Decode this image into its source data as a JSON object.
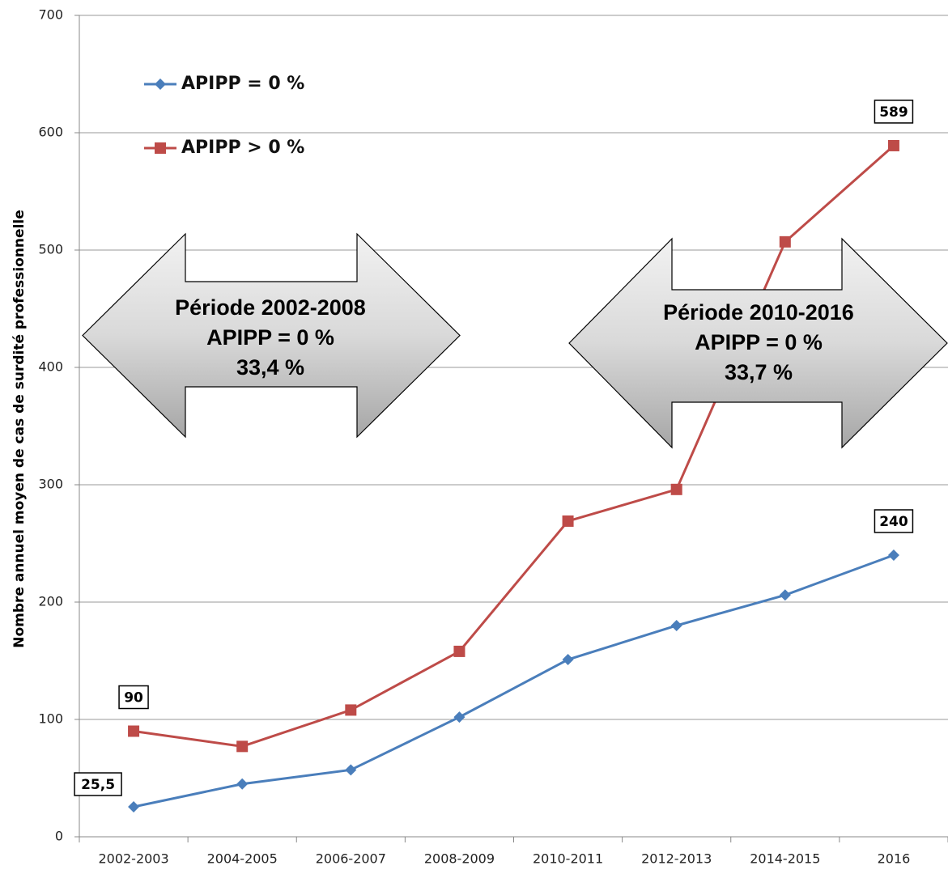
{
  "chart_data": {
    "type": "line",
    "y_label": "Nombre annuel moyen de cas de surdité professionnelle",
    "categories": [
      "2002-2003",
      "2004-2005",
      "2006-2007",
      "2008-2009",
      "2010-2011",
      "2012-2013",
      "2014-2015",
      "2016"
    ],
    "series": [
      {
        "name": "APIPP = 0 %",
        "color": "#4a7ebb",
        "marker": "diamond",
        "values": [
          25.5,
          45,
          57,
          102,
          151,
          180,
          206,
          240
        ],
        "value_labels": [
          "25,5",
          null,
          null,
          null,
          null,
          null,
          null,
          "240"
        ]
      },
      {
        "name": "APIPP > 0 %",
        "color": "#be4b48",
        "marker": "square",
        "values": [
          90,
          77,
          108,
          158,
          269,
          296,
          507,
          589
        ],
        "value_labels": [
          "90",
          null,
          null,
          null,
          null,
          null,
          null,
          "589"
        ]
      }
    ],
    "ylim": [
      0,
      700
    ],
    "yticks": [
      0,
      100,
      200,
      300,
      400,
      500,
      600,
      700
    ],
    "grid": true,
    "legend": "upper left",
    "annotations": [
      {
        "lines": [
          "Période 2002-2008",
          "APIPP = 0 %",
          "33,4 %"
        ]
      },
      {
        "lines": [
          "Période 2010-2016",
          "APIPP = 0 %",
          "33,7 %"
        ]
      }
    ]
  }
}
